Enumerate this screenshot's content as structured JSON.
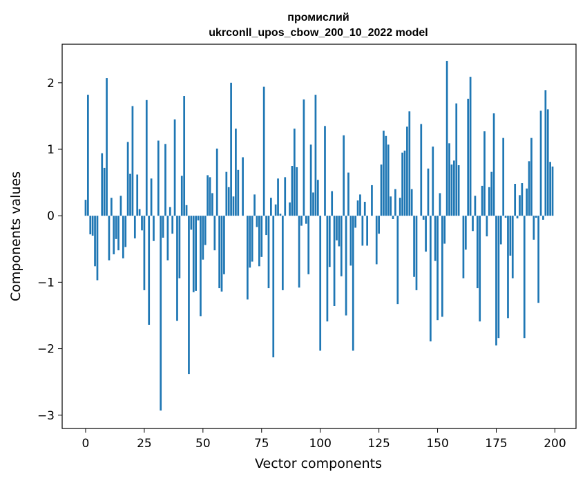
{
  "chart_data": {
    "type": "bar",
    "title": "промислий",
    "subtitle": "ukrconll_upos_cbow_200_10_2022 model",
    "xlabel": "Vector components",
    "ylabel": "Components values",
    "xlim": [
      -10,
      209
    ],
    "ylim": [
      -3.2,
      2.58
    ],
    "xticks": [
      0,
      25,
      50,
      75,
      100,
      125,
      150,
      175,
      200
    ],
    "yticks": [
      -3,
      -2,
      -1,
      0,
      1,
      2
    ],
    "ytick_labels": [
      "−3",
      "−2",
      "−1",
      "0",
      "1",
      "2"
    ],
    "bar_color": "#1f77b4",
    "values": [
      0.24,
      1.82,
      -0.28,
      -0.3,
      -0.76,
      -0.97,
      0.0,
      0.94,
      0.72,
      2.07,
      -0.67,
      0.27,
      -0.58,
      -0.35,
      -0.52,
      0.3,
      -0.64,
      -0.47,
      1.11,
      0.63,
      1.65,
      -0.34,
      0.62,
      0.1,
      -0.22,
      -1.12,
      1.74,
      -1.64,
      0.56,
      -0.38,
      0.0,
      1.13,
      -2.93,
      -0.33,
      1.08,
      -0.67,
      0.13,
      -0.27,
      1.45,
      -1.58,
      -0.94,
      0.6,
      1.8,
      0.16,
      -2.38,
      -0.21,
      -1.15,
      -1.13,
      -0.07,
      -1.51,
      -0.66,
      -0.44,
      0.61,
      0.58,
      0.34,
      -0.52,
      1.01,
      -1.09,
      -1.14,
      -0.88,
      0.66,
      0.43,
      2.0,
      0.29,
      1.31,
      0.69,
      0.0,
      0.88,
      0.0,
      -1.26,
      -0.78,
      -0.69,
      0.32,
      -0.17,
      -0.76,
      -0.62,
      1.94,
      -0.29,
      -1.09,
      0.27,
      -2.13,
      0.17,
      0.56,
      0.03,
      -1.12,
      0.58,
      0.0,
      0.2,
      0.75,
      1.31,
      0.73,
      -1.08,
      -0.15,
      1.75,
      -0.12,
      -0.88,
      1.07,
      0.35,
      1.82,
      0.54,
      -2.03,
      0.0,
      1.35,
      -1.59,
      -0.77,
      0.37,
      -1.36,
      -0.37,
      -0.46,
      -0.91,
      1.21,
      -1.5,
      0.65,
      -0.75,
      -2.03,
      -0.18,
      0.23,
      0.32,
      -0.45,
      0.21,
      -0.45,
      0.0,
      0.46,
      0.0,
      -0.73,
      -0.27,
      0.77,
      1.28,
      1.2,
      1.07,
      0.29,
      -0.05,
      0.4,
      -1.33,
      0.27,
      0.95,
      0.98,
      1.34,
      1.57,
      0.4,
      -0.92,
      -1.12,
      0.0,
      1.38,
      -0.06,
      -0.54,
      0.71,
      -1.89,
      1.04,
      -0.68,
      -1.57,
      0.34,
      -1.52,
      -0.42,
      2.33,
      1.09,
      0.77,
      0.83,
      1.69,
      0.76,
      0.0,
      -0.94,
      -0.51,
      1.76,
      2.09,
      -0.23,
      0.3,
      -1.09,
      -1.59,
      0.45,
      1.27,
      -0.31,
      0.43,
      0.66,
      1.54,
      -1.95,
      -1.84,
      -0.43,
      1.17,
      -0.03,
      -1.54,
      -0.6,
      -0.94,
      0.48,
      -0.04,
      0.31,
      0.49,
      -1.84,
      0.41,
      0.82,
      1.17,
      -0.36,
      -0.03,
      -1.31,
      1.58,
      -0.06,
      1.89,
      1.6,
      0.81,
      0.74
    ]
  }
}
